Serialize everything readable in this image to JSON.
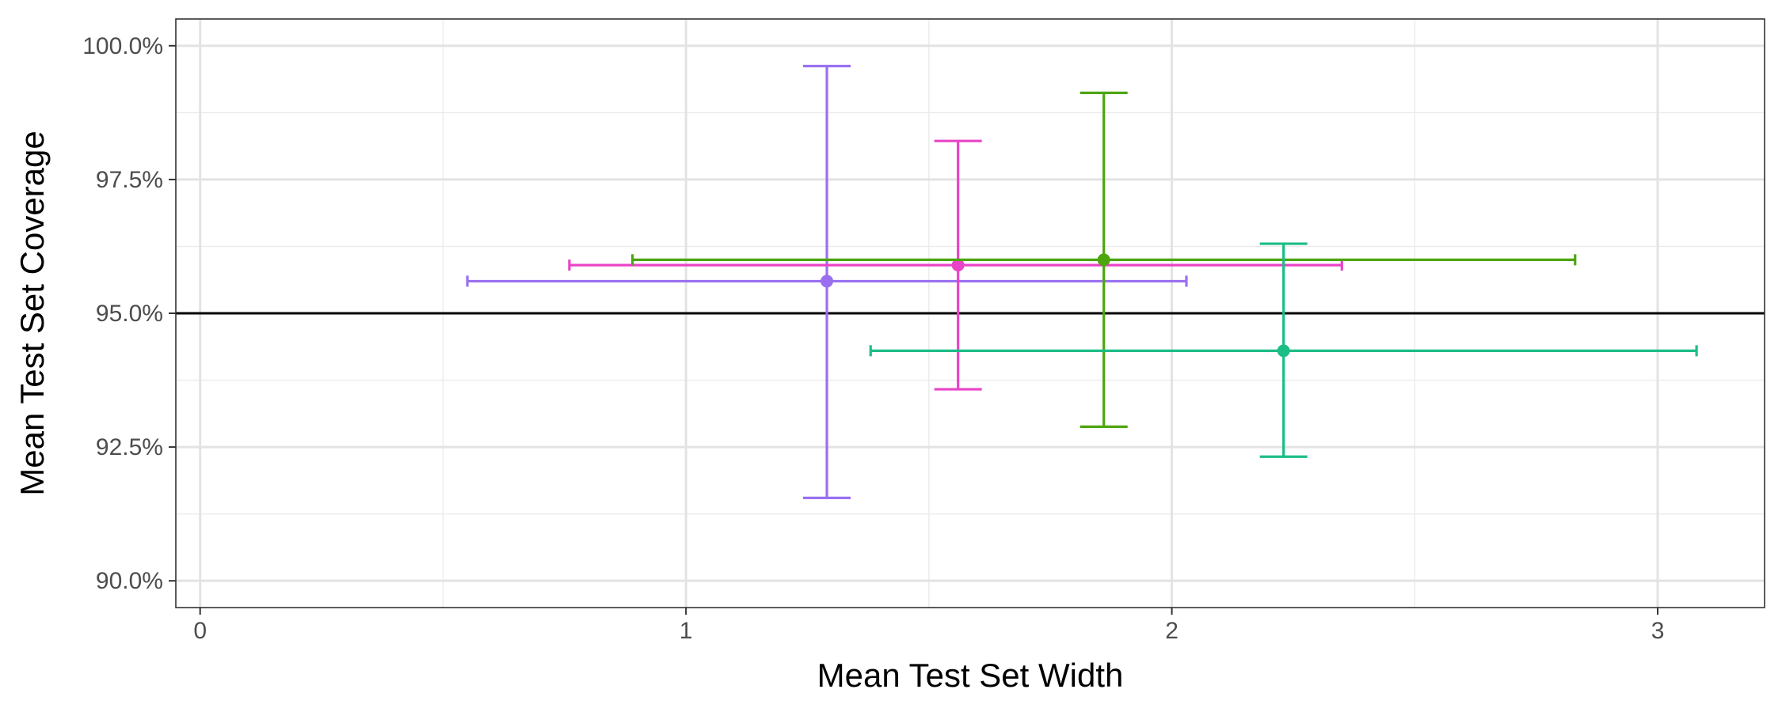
{
  "chart_data": {
    "type": "scatter",
    "xlabel": "Mean Test Set Width",
    "ylabel": "Mean Test Set Coverage",
    "xlim": [
      -0.05,
      3.22
    ],
    "ylim": [
      89.5,
      100.5
    ],
    "x_ticks": [
      0,
      1,
      2,
      3
    ],
    "x_tick_labels": [
      "0",
      "1",
      "2",
      "3"
    ],
    "y_ticks": [
      90.0,
      92.5,
      95.0,
      97.5,
      100.0
    ],
    "y_tick_labels": [
      "90.0%",
      "92.5%",
      "95.0%",
      "97.5%",
      "100.0%"
    ],
    "reference_line_y": 95.0,
    "grid": true,
    "legend": "none",
    "points": [
      {
        "x": 1.29,
        "y": 95.6,
        "x_low": 0.55,
        "x_high": 2.03,
        "y_low": 91.55,
        "y_high": 99.62,
        "color": "#9a70f0"
      },
      {
        "x": 1.56,
        "y": 95.9,
        "x_low": 0.76,
        "x_high": 2.35,
        "y_low": 93.58,
        "y_high": 98.22,
        "color": "#e944c7"
      },
      {
        "x": 1.86,
        "y": 96.0,
        "x_low": 0.89,
        "x_high": 2.83,
        "y_low": 92.88,
        "y_high": 99.12,
        "color": "#4da60e"
      },
      {
        "x": 2.23,
        "y": 94.3,
        "x_low": 1.38,
        "x_high": 3.08,
        "y_low": 92.32,
        "y_high": 96.3,
        "color": "#1dbd86"
      }
    ]
  }
}
